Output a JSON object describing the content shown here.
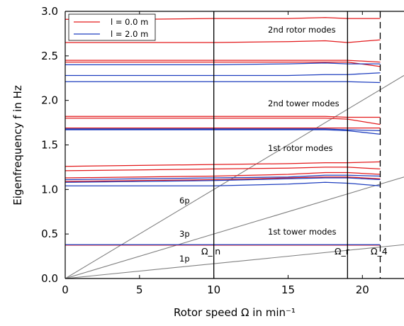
{
  "chart_data": {
    "type": "line",
    "xlabel": "Rotor speed Ω in min⁻¹",
    "ylabel": "Eigenfrequency f in Hz",
    "xlim": [
      0,
      22.8
    ],
    "ylim": [
      0,
      3.0
    ],
    "xticks": [
      0,
      5,
      10,
      15,
      20
    ],
    "xtick_labels": [
      "0",
      "5",
      "10",
      "15",
      "20"
    ],
    "yticks": [
      0,
      0.5,
      1.0,
      1.5,
      2.0,
      2.5,
      3.0
    ],
    "ytick_labels": [
      "0.0",
      "0.5",
      "1.0",
      "1.5",
      "2.0",
      "2.5",
      "3.0"
    ],
    "grid": false,
    "legend_position": "top-left",
    "legend": [
      {
        "label": "l = 0.0 m",
        "color": "#e31a1c"
      },
      {
        "label": "l = 2.0 m",
        "color": "#1f3fbf"
      }
    ],
    "colors": {
      "red": "#e31a1c",
      "blue": "#1f3fbf",
      "harmonic": "#808080"
    },
    "x": [
      0,
      5,
      10,
      15,
      17.5,
      19,
      21.2
    ],
    "series": [
      {
        "group": "l = 0.0 m",
        "values": [
          0.375,
          0.375,
          0.375,
          0.375,
          0.375,
          0.375,
          0.375
        ]
      },
      {
        "group": "l = 0.0 m",
        "values": [
          1.09,
          1.1,
          1.11,
          1.13,
          1.14,
          1.14,
          1.12
        ]
      },
      {
        "group": "l = 0.0 m",
        "values": [
          1.13,
          1.14,
          1.15,
          1.17,
          1.19,
          1.19,
          1.17
        ]
      },
      {
        "group": "l = 0.0 m",
        "values": [
          1.21,
          1.22,
          1.23,
          1.24,
          1.25,
          1.25,
          1.23
        ]
      },
      {
        "group": "l = 0.0 m",
        "values": [
          1.26,
          1.27,
          1.28,
          1.29,
          1.3,
          1.3,
          1.31
        ]
      },
      {
        "group": "l = 0.0 m",
        "values": [
          1.69,
          1.69,
          1.69,
          1.69,
          1.69,
          1.69,
          1.69
        ]
      },
      {
        "group": "l = 0.0 m",
        "values": [
          1.8,
          1.8,
          1.8,
          1.8,
          1.8,
          1.79,
          1.73
        ]
      },
      {
        "group": "l = 0.0 m",
        "values": [
          1.82,
          1.82,
          1.82,
          1.82,
          1.82,
          1.81,
          1.81
        ]
      },
      {
        "group": "l = 0.0 m",
        "values": [
          2.43,
          2.43,
          2.43,
          2.43,
          2.43,
          2.43,
          2.38
        ]
      },
      {
        "group": "l = 0.0 m",
        "values": [
          2.45,
          2.45,
          2.45,
          2.45,
          2.45,
          2.45,
          2.43
        ]
      },
      {
        "group": "l = 0.0 m",
        "values": [
          2.65,
          2.65,
          2.65,
          2.66,
          2.67,
          2.65,
          2.68
        ]
      },
      {
        "group": "l = 0.0 m",
        "values": [
          2.91,
          2.91,
          2.92,
          2.92,
          2.93,
          2.92,
          2.92
        ]
      },
      {
        "group": "l = 2.0 m",
        "values": [
          0.38,
          0.38,
          0.38,
          0.38,
          0.38,
          0.38,
          0.38
        ]
      },
      {
        "group": "l = 2.0 m",
        "values": [
          1.04,
          1.04,
          1.04,
          1.06,
          1.08,
          1.07,
          1.04
        ]
      },
      {
        "group": "l = 2.0 m",
        "values": [
          1.08,
          1.09,
          1.1,
          1.12,
          1.13,
          1.13,
          1.11
        ]
      },
      {
        "group": "l = 2.0 m",
        "values": [
          1.11,
          1.12,
          1.13,
          1.14,
          1.16,
          1.16,
          1.15
        ]
      },
      {
        "group": "l = 2.0 m",
        "values": [
          1.67,
          1.67,
          1.67,
          1.67,
          1.67,
          1.66,
          1.62
        ]
      },
      {
        "group": "l = 2.0 m",
        "values": [
          1.68,
          1.68,
          1.68,
          1.68,
          1.68,
          1.67,
          1.66
        ]
      },
      {
        "group": "l = 2.0 m",
        "values": [
          2.21,
          2.21,
          2.21,
          2.21,
          2.21,
          2.21,
          2.2
        ]
      },
      {
        "group": "l = 2.0 m",
        "values": [
          2.28,
          2.28,
          2.28,
          2.28,
          2.29,
          2.29,
          2.31
        ]
      },
      {
        "group": "l = 2.0 m",
        "values": [
          2.4,
          2.4,
          2.4,
          2.41,
          2.42,
          2.41,
          2.41
        ]
      }
    ],
    "harmonics": [
      {
        "label": "1p",
        "multiplier": 1
      },
      {
        "label": "3p",
        "multiplier": 3
      },
      {
        "label": "6p",
        "multiplier": 6
      }
    ],
    "reference_lines": [
      {
        "label": "Ω_in",
        "x": 10,
        "style": "solid"
      },
      {
        "label": "Ω_r",
        "x": 19,
        "style": "solid"
      },
      {
        "label": "Ω_4",
        "x": 21.2,
        "style": "dashed"
      }
    ],
    "mode_labels": [
      "2nd rotor modes",
      "2nd tower modes",
      "1st rotor modes",
      "1st tower modes"
    ]
  }
}
